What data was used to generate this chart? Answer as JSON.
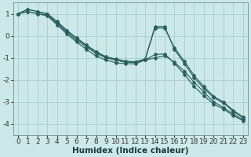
{
  "xlabel": "Humidex (Indice chaleur)",
  "ylabel": "",
  "background_color": "#cce8e8",
  "grid_color": "#aacccc",
  "line_color": "#2a6060",
  "x": [
    0,
    1,
    2,
    3,
    4,
    5,
    6,
    7,
    8,
    9,
    10,
    11,
    12,
    13,
    14,
    15,
    16,
    17,
    18,
    19,
    20,
    21,
    22,
    23
  ],
  "series": [
    [
      1.0,
      1.1,
      1.0,
      0.95,
      0.55,
      0.15,
      -0.2,
      -0.5,
      -0.8,
      -1.0,
      -1.1,
      -1.2,
      -1.2,
      -1.1,
      -1.0,
      -0.9,
      -1.2,
      -1.6,
      -2.1,
      -2.55,
      -3.0,
      -3.25,
      -3.55,
      -3.8
    ],
    [
      1.0,
      1.1,
      1.0,
      0.9,
      0.5,
      0.08,
      -0.28,
      -0.62,
      -0.92,
      -1.1,
      -1.22,
      -1.27,
      -1.27,
      -1.1,
      -0.85,
      -0.82,
      -1.25,
      -1.75,
      -2.3,
      -2.72,
      -3.1,
      -3.32,
      -3.62,
      -3.85
    ],
    [
      1.0,
      1.2,
      1.1,
      1.0,
      0.65,
      0.25,
      -0.1,
      -0.42,
      -0.72,
      -0.95,
      -1.05,
      -1.15,
      -1.18,
      -1.05,
      0.35,
      0.35,
      -0.55,
      -1.15,
      -1.8,
      -2.3,
      -2.75,
      -3.0,
      -3.38,
      -3.68
    ],
    [
      1.0,
      1.2,
      1.1,
      1.0,
      0.62,
      0.22,
      -0.12,
      -0.45,
      -0.75,
      -0.96,
      -1.1,
      -1.18,
      -1.2,
      -1.08,
      0.42,
      0.42,
      -0.62,
      -1.25,
      -1.9,
      -2.38,
      -2.8,
      -3.05,
      -3.42,
      -3.72
    ]
  ],
  "ylim": [
    -4.5,
    1.5
  ],
  "xlim": [
    -0.5,
    23.5
  ],
  "yticks": [
    -4,
    -3,
    -2,
    -1,
    0,
    1
  ],
  "xticks": [
    0,
    1,
    2,
    3,
    4,
    5,
    6,
    7,
    8,
    9,
    10,
    11,
    12,
    13,
    14,
    15,
    16,
    17,
    18,
    19,
    20,
    21,
    22,
    23
  ],
  "tick_fontsize": 6.5,
  "xlabel_fontsize": 7.5
}
